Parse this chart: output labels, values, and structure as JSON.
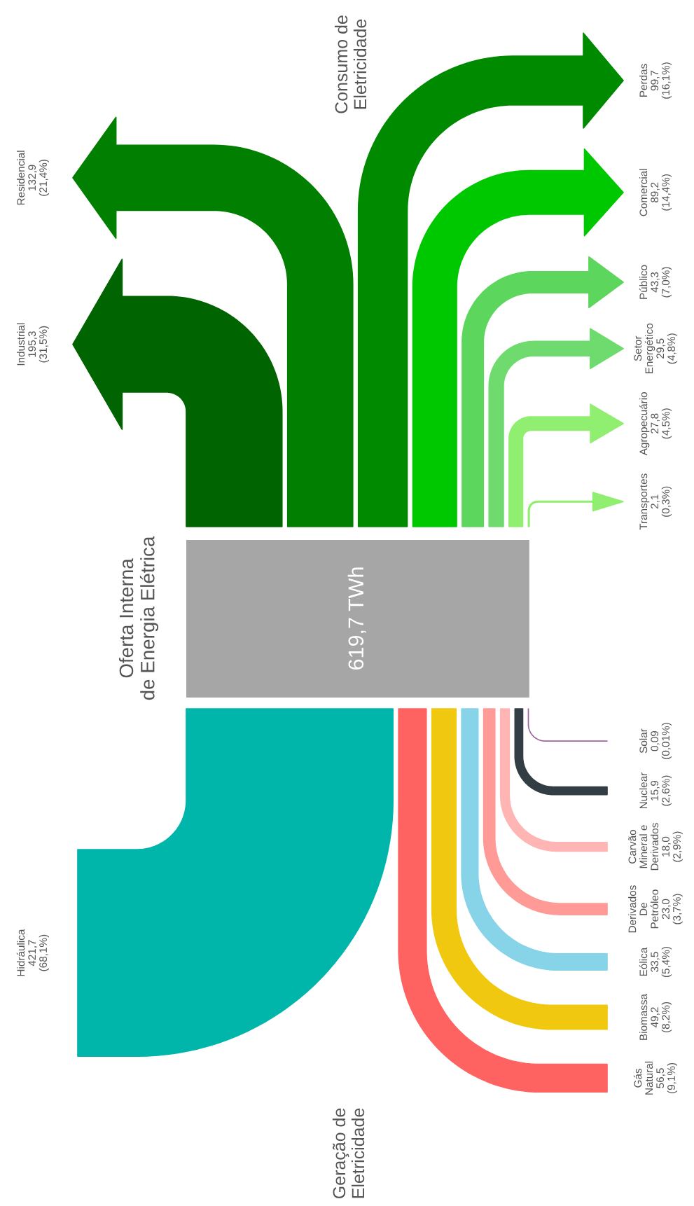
{
  "chart_data": {
    "type": "other",
    "title": "Oferta Interna\nde Energia Elétrica",
    "categories": [
      "Industrial",
      "Residencial",
      "Perdas",
      "Comercial",
      "Público",
      "Setor\nEnergético",
      "Agropecuário",
      "Transportes",
      "Hidráulica",
      "Gás\nNatural",
      "Biomassa",
      "Eólica",
      "Derivados\nDe\nPetróleo",
      "Carvão\nMineral e\nDerivados",
      "Nuclear",
      "Solar"
    ],
    "annotations": [
      "619,7 TWh",
      "(31,5%)",
      "(21,4%)",
      "(16,1%)",
      "(14,4%)",
      "(7,0%)",
      "(4,8%)",
      "(4,5%)",
      "(0,3%)",
      "(68,1%)",
      "(9,1%)",
      "(8,2%)",
      "(5,4%)",
      "(3,7%)",
      "(2,9%)",
      "(2,6%)",
      "(0,01%)"
    ],
    "series": [
      {
        "name": "Consumo de\nEletricidade",
        "values": [
          195.3,
          132.9,
          99.7,
          89.2,
          43.3,
          29.5,
          27.8,
          2.1,
          null,
          null,
          null,
          null,
          null,
          null,
          null,
          null
        ],
        "value_labels": [
          "195,3",
          "132,9",
          "99,7",
          "89,2",
          "43,3",
          "29,5",
          "27,8",
          "2,1",
          null,
          null,
          null,
          null,
          null,
          null,
          null,
          null
        ],
        "colors": [
          "#006400",
          "#007f00",
          "#008a00",
          "#00c800",
          "#5cd65c",
          "#6fdb6f",
          "#90ee70",
          "#90ee70",
          null,
          null,
          null,
          null,
          null,
          null,
          null,
          null
        ]
      },
      {
        "name": "Geração de\nEletricidade",
        "values": [
          null,
          null,
          null,
          null,
          null,
          null,
          null,
          null,
          421.7,
          56.5,
          49.2,
          33.5,
          23.0,
          18.0,
          15.9,
          0.09
        ],
        "value_labels": [
          null,
          null,
          null,
          null,
          null,
          null,
          null,
          null,
          "421,7",
          "56,5",
          "49,2",
          "33,5",
          "23,0",
          "18,0",
          "15,9",
          "0,09"
        ],
        "colors": [
          null,
          null,
          null,
          null,
          null,
          null,
          null,
          null,
          "#00b5aa",
          "#ff6361",
          "#f0c80f",
          "#87d3e8",
          "#ff9a96",
          "#ffb5b3",
          "#333d44",
          "#a0649c"
        ]
      }
    ]
  }
}
